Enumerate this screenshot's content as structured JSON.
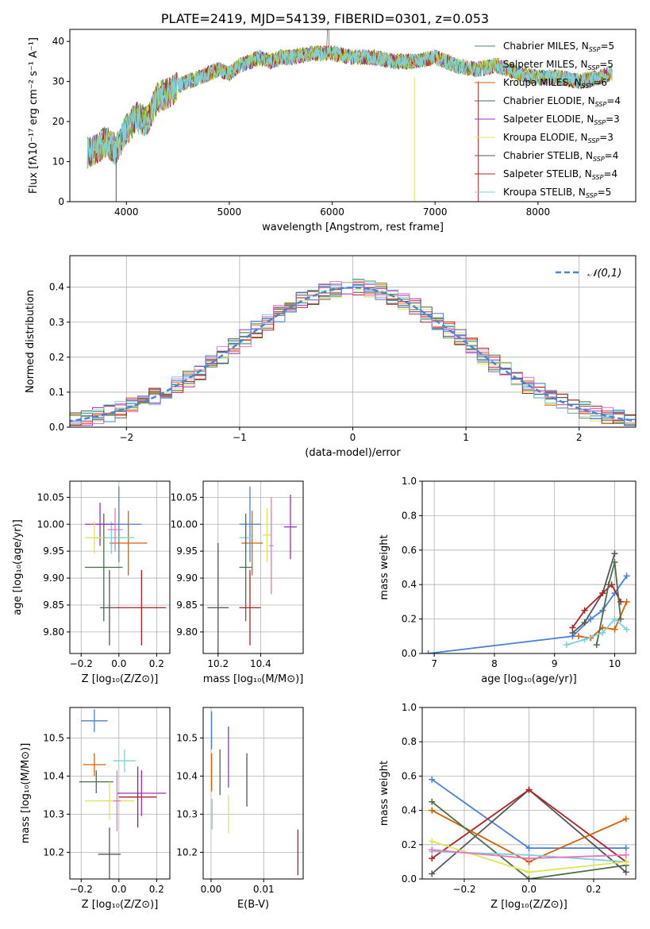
{
  "title": "PLATE=2419, MJD=54139, FIBERID=0301, z=0.053",
  "colors": {
    "models": [
      "#5a8a5a",
      "#9acd32",
      "#d95f02",
      "#4a6d4a",
      "#9b30c0",
      "#dde55a",
      "#555555",
      "#b22222",
      "#7fd0d8"
    ],
    "pink": "#e377c2",
    "blue": "#4a7fd6",
    "gaussian": "#4a86cf"
  },
  "spectrum": {
    "xlabel": "wavelength [Angstrom, rest frame]",
    "ylabel": "Flux [fλ10⁻¹⁷ erg cm⁻² s⁻¹ A⁻¹]",
    "xticks": [
      "4000",
      "5000",
      "6000",
      "7000",
      "8000"
    ],
    "yticks": [
      "0",
      "10",
      "20",
      "30",
      "40"
    ],
    "legend": [
      "Chabrier MILES, N_SSP=5",
      "Salpeter MILES, N_SSP=5",
      "Kroupa MILES, N_SSP=6",
      "Chabrier ELODIE, N_SSP=4",
      "Salpeter ELODIE, N_SSP=3",
      "Kroupa ELODIE, N_SSP=3",
      "Chabrier STELIB, N_SSP=4",
      "Salpeter STELIB, N_SSP=4",
      "Kroupa STELIB, N_SSP=5"
    ]
  },
  "residuals": {
    "xlabel": "(data-model)/error",
    "ylabel": "Normed distribution",
    "legend": "𝒩(0,1)",
    "xticks": [
      "−2",
      "−1",
      "0",
      "1",
      "2"
    ],
    "yticks": [
      "0.0",
      "0.1",
      "0.2",
      "0.3",
      "0.4"
    ]
  },
  "panels": {
    "age_vs_z": {
      "xlabel": "Z [log₁₀(Z/Z⊙)]",
      "ylabel": "age  [log₁₀(age/yr)]",
      "xticks": [
        "−0.2",
        "0.0",
        "0.2"
      ],
      "yticks": [
        "9.80",
        "9.85",
        "9.90",
        "9.95",
        "10.00",
        "10.05"
      ]
    },
    "age_vs_mass": {
      "xlabel": "mass [log₁₀(M/M⊙)]",
      "xticks": [
        "10.2",
        "10.4"
      ],
      "yticks": [
        "9.80",
        "9.85",
        "9.90",
        "9.95",
        "10.00",
        "10.05"
      ]
    },
    "weight_vs_age": {
      "xlabel": "age  [log₁₀(age/yr)]",
      "ylabel": "mass weight",
      "xticks": [
        "7",
        "8",
        "9",
        "10"
      ],
      "yticks": [
        "0.0",
        "0.2",
        "0.4",
        "0.6",
        "0.8",
        "1.0"
      ]
    },
    "mass_vs_z": {
      "xlabel": "Z [log₁₀(Z/Z⊙)]",
      "ylabel": "mass [log₁₀(M/M⊙)]",
      "xticks": [
        "−0.2",
        "0.0",
        "0.2"
      ],
      "yticks": [
        "10.2",
        "10.3",
        "10.4",
        "10.5"
      ]
    },
    "mass_vs_ebv": {
      "xlabel": "E(B-V)",
      "xticks": [
        "0.00",
        "0.01"
      ],
      "yticks": [
        "10.2",
        "10.3",
        "10.4",
        "10.5"
      ]
    },
    "weight_vs_z": {
      "xlabel": "Z [log₁₀(Z/Z⊙)]",
      "ylabel": "mass weight",
      "xticks": [
        "−0.2",
        "0.0",
        "0.2"
      ],
      "yticks": [
        "0.0",
        "0.2",
        "0.4",
        "0.6",
        "0.8",
        "1.0"
      ]
    }
  },
  "chart_data": [
    {
      "type": "line",
      "title": "PLATE=2419, MJD=54139, FIBERID=0301, z=0.053",
      "xlabel": "wavelength [Angstrom, rest frame]",
      "ylabel": "Flux [fλ10⁻¹⁷ erg cm⁻² s⁻¹ A⁻¹]",
      "xlim": [
        3450,
        8950
      ],
      "ylim": [
        0,
        43
      ],
      "x": [
        3600,
        3700,
        3800,
        3900,
        4000,
        4100,
        4200,
        4300,
        4400,
        4500,
        4600,
        4700,
        4800,
        4900,
        5000,
        5100,
        5200,
        5300,
        5400,
        5500,
        5600,
        5800,
        6000,
        6200,
        6400,
        6600,
        6800,
        7000,
        7200,
        7400,
        7600,
        7800,
        8000,
        8200,
        8400,
        8600,
        8700
      ],
      "y": [
        12,
        13,
        15,
        13,
        18,
        21,
        20,
        26,
        27,
        29,
        30,
        31,
        32,
        33,
        32,
        34,
        35,
        36,
        35,
        36,
        36,
        37,
        37,
        36,
        36,
        35,
        35,
        36,
        34,
        33,
        34,
        32,
        31,
        31,
        30,
        31,
        32
      ],
      "series": [
        {
          "name": "Chabrier MILES, N_SSP=5"
        },
        {
          "name": "Salpeter MILES, N_SSP=5"
        },
        {
          "name": "Kroupa MILES, N_SSP=6"
        },
        {
          "name": "Chabrier ELODIE, N_SSP=4"
        },
        {
          "name": "Salpeter ELODIE, N_SSP=3"
        },
        {
          "name": "Kroupa ELODIE, N_SSP=3"
        },
        {
          "name": "Chabrier STELIB, N_SSP=4"
        },
        {
          "name": "Salpeter STELIB, N_SSP=4"
        },
        {
          "name": "Kroupa STELIB, N_SSP=5"
        }
      ]
    },
    {
      "type": "histogram",
      "xlabel": "(data-model)/error",
      "ylabel": "Normed distribution",
      "xlim": [
        -2.5,
        2.5
      ],
      "ylim": [
        0,
        0.49
      ],
      "gaussian": {
        "name": "𝒩(0,1)",
        "mu": 0,
        "sigma": 1
      }
    },
    {
      "type": "scatter",
      "subtype": "errorbar",
      "xlabel": "Z [log₁₀(Z/Z⊙)]",
      "ylabel": "age  [log₁₀(age/yr)]",
      "xlim": [
        -0.26,
        0.27
      ],
      "ylim": [
        9.76,
        10.08
      ],
      "points": [
        {
          "x": 0.0,
          "y": 10.0,
          "xerr": 0.12,
          "yerr": 0.07
        },
        {
          "x": 0.05,
          "y": 9.965,
          "xerr": 0.1,
          "yerr": 0.06
        },
        {
          "x": -0.04,
          "y": 9.975,
          "xerr": 0.12,
          "yerr": 0.03
        },
        {
          "x": -0.08,
          "y": 9.92,
          "xerr": 0.1,
          "yerr": 0.1
        },
        {
          "x": -0.1,
          "y": 10.0,
          "xerr": 0.08,
          "yerr": 0.04
        },
        {
          "x": -0.13,
          "y": 9.975,
          "xerr": 0.05,
          "yerr": 0.03
        },
        {
          "x": -0.05,
          "y": 9.845,
          "xerr": 0.05,
          "yerr": 0.07
        },
        {
          "x": 0.12,
          "y": 9.845,
          "xerr": 0.13,
          "yerr": 0.07
        },
        {
          "x": -0.02,
          "y": 9.99,
          "xerr": 0.04,
          "yerr": 0.04
        }
      ]
    },
    {
      "type": "scatter",
      "subtype": "errorbar",
      "xlabel": "mass [log₁₀(M/M⊙)]",
      "ylabel": "age  [log₁₀(age/yr)]",
      "xlim": [
        10.13,
        10.6
      ],
      "ylim": [
        9.76,
        10.08
      ],
      "points": [
        {
          "x": 10.35,
          "y": 10.0,
          "xerr": 0.05,
          "yerr": 0.07
        },
        {
          "x": 10.36,
          "y": 9.965,
          "xerr": 0.05,
          "yerr": 0.06
        },
        {
          "x": 10.33,
          "y": 9.975,
          "xerr": 0.03,
          "yerr": 0.03
        },
        {
          "x": 10.33,
          "y": 9.92,
          "xerr": 0.03,
          "yerr": 0.1
        },
        {
          "x": 10.54,
          "y": 9.995,
          "xerr": 0.03,
          "yerr": 0.06
        },
        {
          "x": 10.43,
          "y": 9.98,
          "xerr": 0.02,
          "yerr": 0.05
        },
        {
          "x": 10.2,
          "y": 9.845,
          "xerr": 0.05,
          "yerr": 0.12
        },
        {
          "x": 10.35,
          "y": 9.845,
          "xerr": 0.05,
          "yerr": 0.07
        },
        {
          "x": 10.45,
          "y": 9.96,
          "xerr": 0.01,
          "yerr": 0.09
        }
      ]
    },
    {
      "type": "line",
      "xlabel": "age  [log₁₀(age/yr)]",
      "ylabel": "mass weight",
      "xlim": [
        6.8,
        10.35
      ],
      "ylim": [
        0,
        1
      ],
      "series": [
        {
          "x": [
            6.9,
            9.3,
            9.6,
            9.8,
            10.0,
            10.2
          ],
          "y": [
            0.0,
            0.1,
            0.2,
            0.25,
            0.35,
            0.45
          ]
        },
        {
          "x": [
            9.3,
            9.5,
            9.8,
            10.0
          ],
          "y": [
            0.12,
            0.18,
            0.35,
            0.58
          ]
        },
        {
          "x": [
            9.3,
            9.5,
            9.8,
            9.95,
            10.1
          ],
          "y": [
            0.15,
            0.25,
            0.35,
            0.4,
            0.3
          ]
        },
        {
          "x": [
            9.4,
            9.6,
            9.8,
            10.0,
            10.2
          ],
          "y": [
            0.1,
            0.09,
            0.15,
            0.14,
            0.3
          ]
        },
        {
          "x": [
            9.7,
            9.9,
            10.0,
            10.1
          ],
          "y": [
            0.05,
            0.4,
            0.53,
            0.2
          ]
        },
        {
          "x": [
            9.2,
            9.5,
            9.8,
            10.0,
            10.2
          ],
          "y": [
            0.05,
            0.08,
            0.12,
            0.2,
            0.14
          ]
        }
      ]
    },
    {
      "type": "scatter",
      "subtype": "errorbar",
      "xlabel": "Z [log₁₀(Z/Z⊙)]",
      "ylabel": "mass [log₁₀(M/M⊙)]",
      "xlim": [
        -0.26,
        0.27
      ],
      "ylim": [
        10.13,
        10.58
      ],
      "points": [
        {
          "x": -0.13,
          "y": 10.545,
          "xerr": 0.07,
          "yerr": 0.03
        },
        {
          "x": -0.13,
          "y": 10.43,
          "xerr": 0.06,
          "yerr": 0.03
        },
        {
          "x": 0.03,
          "y": 10.44,
          "xerr": 0.06,
          "yerr": 0.03
        },
        {
          "x": -0.12,
          "y": 10.385,
          "xerr": 0.09,
          "yerr": 0.03
        },
        {
          "x": 0.12,
          "y": 10.355,
          "xerr": 0.13,
          "yerr": 0.06
        },
        {
          "x": -0.05,
          "y": 10.335,
          "xerr": 0.13,
          "yerr": 0.05
        },
        {
          "x": -0.05,
          "y": 10.195,
          "xerr": 0.06,
          "yerr": 0.07
        },
        {
          "x": 0.1,
          "y": 10.345,
          "xerr": 0.1,
          "yerr": 0.08
        },
        {
          "x": -0.01,
          "y": 10.335,
          "xerr": 0.02,
          "yerr": 0.08
        }
      ]
    },
    {
      "type": "scatter",
      "subtype": "errorbar",
      "xlabel": "E(B-V)",
      "ylabel": "mass [log₁₀(M/M⊙)]",
      "xlim": [
        -0.0015,
        0.0175
      ],
      "ylim": [
        10.13,
        10.58
      ],
      "points": [
        {
          "x": 0.0001,
          "y": 10.52,
          "yerr": 0.05
        },
        {
          "x": 0.0001,
          "y": 10.41,
          "yerr": 0.05
        },
        {
          "x": 0.0002,
          "y": 10.3,
          "yerr": 0.04
        },
        {
          "x": 0.0017,
          "y": 10.41,
          "yerr": 0.06
        },
        {
          "x": 0.0033,
          "y": 10.45,
          "yerr": 0.08
        },
        {
          "x": 0.0033,
          "y": 10.3,
          "yerr": 0.05
        },
        {
          "x": 0.0068,
          "y": 10.39,
          "yerr": 0.07
        },
        {
          "x": 0.0165,
          "y": 10.2,
          "yerr": 0.06
        }
      ]
    },
    {
      "type": "line",
      "xlabel": "Z [log₁₀(Z/Z⊙)]",
      "ylabel": "mass weight",
      "xlim": [
        -0.33,
        0.33
      ],
      "ylim": [
        0,
        1
      ],
      "series": [
        {
          "x": [
            -0.3,
            0.0,
            0.3
          ],
          "y": [
            0.58,
            0.18,
            0.18
          ]
        },
        {
          "x": [
            -0.3,
            0.0,
            0.3
          ],
          "y": [
            0.03,
            0.52,
            0.04
          ]
        },
        {
          "x": [
            -0.3,
            0.0,
            0.3
          ],
          "y": [
            0.12,
            0.52,
            0.1
          ]
        },
        {
          "x": [
            -0.3,
            0.0,
            0.3
          ],
          "y": [
            0.4,
            0.1,
            0.35
          ]
        },
        {
          "x": [
            -0.3,
            0.0,
            0.3
          ],
          "y": [
            0.45,
            0.0,
            0.08
          ]
        },
        {
          "x": [
            -0.3,
            0.0,
            0.3
          ],
          "y": [
            0.16,
            0.14,
            0.1
          ]
        },
        {
          "x": [
            -0.3,
            0.0,
            0.3
          ],
          "y": [
            0.22,
            0.04,
            0.1
          ]
        },
        {
          "x": [
            -0.3,
            0.0,
            0.3
          ],
          "y": [
            0.17,
            0.12,
            0.14
          ]
        }
      ]
    }
  ]
}
